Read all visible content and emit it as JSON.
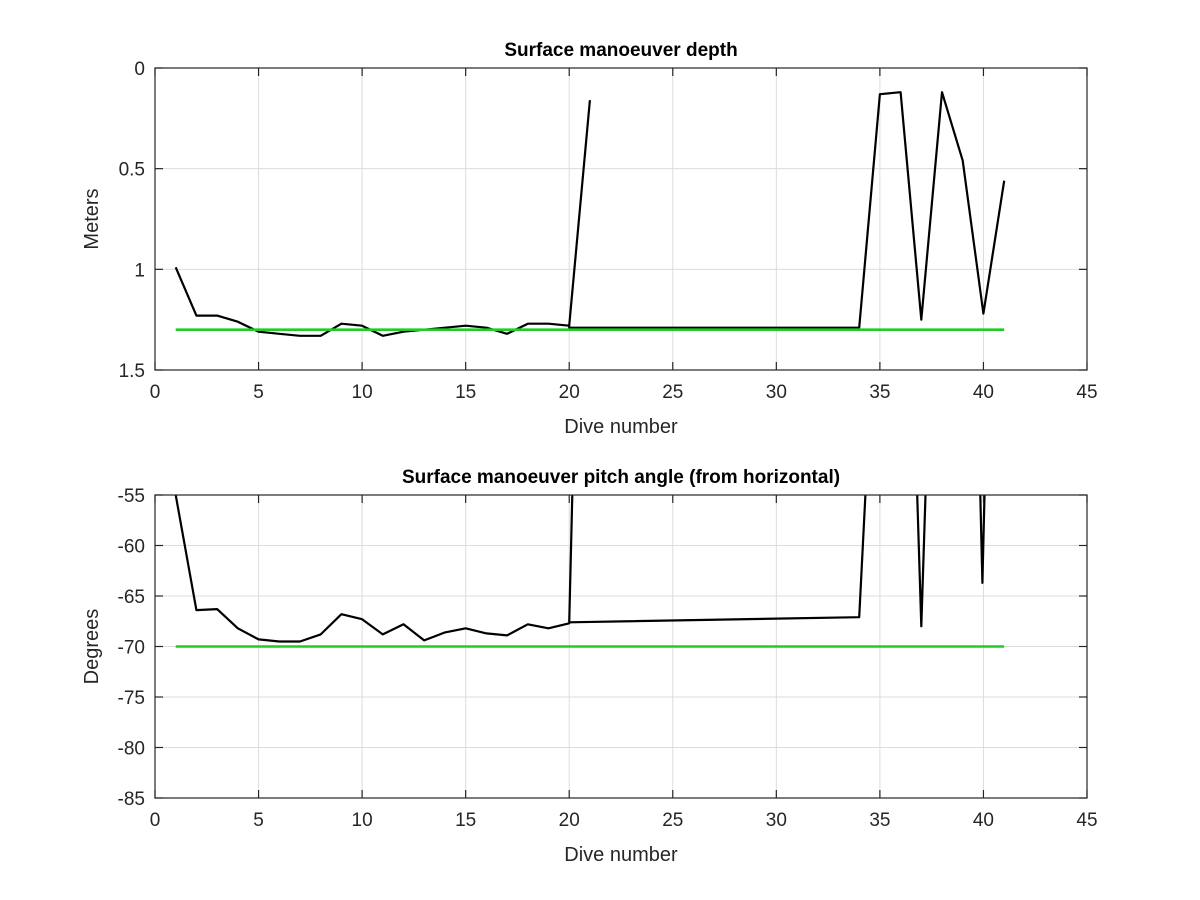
{
  "chart_data": [
    {
      "type": "line",
      "title": "Surface manoeuver depth",
      "xlabel": "Dive number",
      "ylabel": "Meters",
      "xlim": [
        0,
        45
      ],
      "ylim": [
        0,
        1.5
      ],
      "y_reversed": true,
      "grid": true,
      "xticks": [
        "0",
        "5",
        "10",
        "15",
        "20",
        "25",
        "30",
        "35",
        "40",
        "45"
      ],
      "yticks": [
        "0",
        "0.5",
        "1",
        "1.5"
      ],
      "series": [
        {
          "color": "#000000",
          "x": [
            1,
            2,
            3,
            4,
            5,
            6,
            7,
            8,
            9,
            10,
            11,
            12,
            13,
            14,
            15,
            16,
            17,
            18,
            19,
            20,
            20,
            34,
            35,
            36,
            37,
            38,
            39,
            40,
            41
          ],
          "y": [
            0.99,
            1.23,
            1.23,
            1.26,
            1.31,
            1.32,
            1.33,
            1.33,
            1.27,
            1.28,
            1.33,
            1.31,
            1.3,
            1.29,
            1.28,
            1.29,
            1.32,
            1.27,
            1.27,
            1.28,
            1.29,
            1.29,
            0.13,
            0.12,
            1.25,
            0.12,
            0.46,
            1.22,
            0.56
          ]
        },
        {
          "color": "#000000",
          "x": [
            20,
            21
          ],
          "y": [
            1.28,
            0.16
          ]
        },
        {
          "color": "#22cc22",
          "x": [
            1,
            41
          ],
          "y": [
            1.3,
            1.3
          ]
        }
      ]
    },
    {
      "type": "line",
      "title": "Surface manoeuver pitch angle (from horizontal)",
      "xlabel": "Dive number",
      "ylabel": "Degrees",
      "xlim": [
        0,
        45
      ],
      "ylim": [
        -85,
        -55
      ],
      "grid": true,
      "xticks": [
        "0",
        "5",
        "10",
        "15",
        "20",
        "25",
        "30",
        "35",
        "40",
        "45"
      ],
      "yticks": [
        "-55",
        "-60",
        "-65",
        "-70",
        "-75",
        "-80",
        "-85"
      ],
      "series": [
        {
          "color": "#000000",
          "x": [
            1,
            2,
            3,
            4,
            5,
            6,
            7,
            8,
            9,
            10,
            11,
            12,
            13,
            14,
            15,
            16,
            17,
            18,
            19,
            20,
            20.15
          ],
          "y": [
            -55,
            -66.4,
            -66.3,
            -68.2,
            -69.3,
            -69.5,
            -69.5,
            -68.8,
            -66.8,
            -67.3,
            -68.8,
            -67.8,
            -69.4,
            -68.6,
            -68.2,
            -68.7,
            -68.9,
            -67.8,
            -68.2,
            -67.7,
            -55
          ]
        },
        {
          "color": "#000000",
          "x": [
            20,
            34,
            34.3
          ],
          "y": [
            -67.6,
            -67.1,
            -55
          ]
        },
        {
          "color": "#000000",
          "x": [
            36.8,
            37,
            37.2
          ],
          "y": [
            -55,
            -68.0,
            -55
          ]
        },
        {
          "color": "#000000",
          "x": [
            39.85,
            39.95,
            40.05
          ],
          "y": [
            -55,
            -63.7,
            -55
          ]
        },
        {
          "color": "#22cc22",
          "x": [
            1,
            41
          ],
          "y": [
            -70,
            -70
          ]
        }
      ]
    }
  ]
}
